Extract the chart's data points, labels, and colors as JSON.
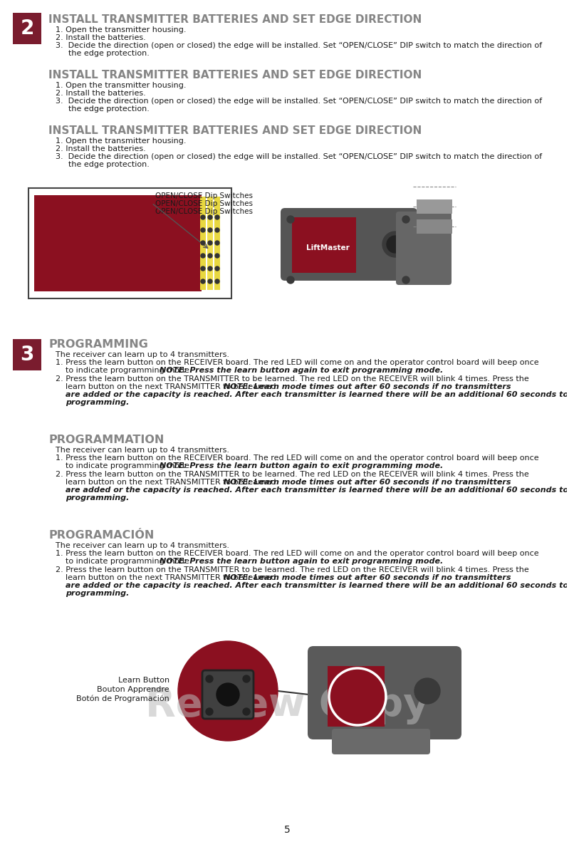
{
  "page_bg": "#ffffff",
  "page_number": "5",
  "step2_number": "2",
  "step3_number": "3",
  "step_num_bg": "#7a1c2e",
  "step_num_color": "#ffffff",
  "section_title_color": "#858585",
  "body_text_color": "#1a1a1a",
  "section2_title": "INSTALL TRANSMITTER BATTERIES AND SET EDGE DIRECTION",
  "section3_titles": [
    "PROGRAMMING",
    "PROGRAMMATION",
    "PROGRAMACIÓN"
  ],
  "section3_intro": "The receiver can learn up to 4 transmitters.",
  "dip_label_lines": [
    "OPEN/CLOSE Dip Switches",
    "OPEN/CLOSE Dip Switches",
    "OPEN/CLOSE Dip Switches"
  ],
  "learn_button_lines": [
    "Learn Button",
    "Bouton Apprendre",
    "Botón de Programación"
  ],
  "review_copy_color": "#bbbbbb",
  "review_copy_alpha": 0.55
}
